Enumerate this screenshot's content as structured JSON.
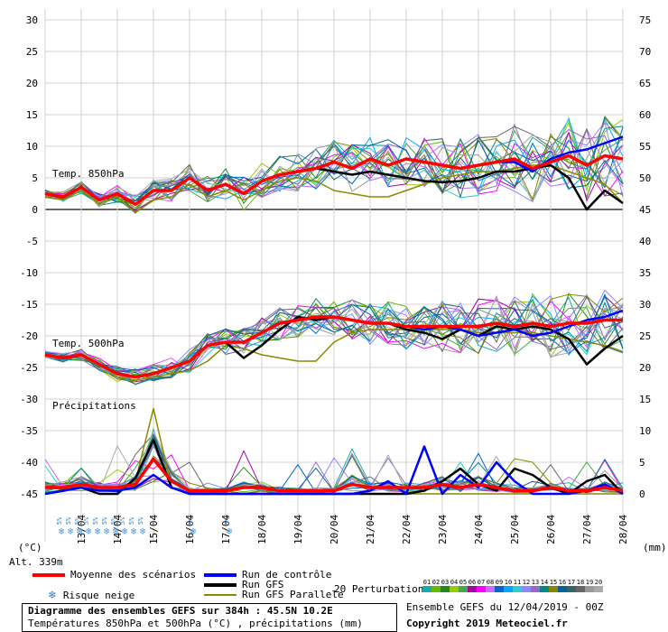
{
  "left_axis": {
    "unit": "(°C)",
    "ticks": [
      30,
      25,
      20,
      15,
      10,
      5,
      0,
      -5,
      -10,
      -15,
      -20,
      -25,
      -30,
      -35,
      -40,
      -45
    ]
  },
  "right_axis": {
    "unit": "(mm)",
    "ticks": [
      75,
      70,
      65,
      60,
      55,
      50,
      45,
      40,
      35,
      30,
      25,
      20,
      15,
      10,
      5,
      0
    ]
  },
  "dates": [
    "13/04",
    "14/04",
    "15/04",
    "16/04",
    "17/04",
    "18/04",
    "19/04",
    "20/04",
    "21/04",
    "22/04",
    "23/04",
    "24/04",
    "25/04",
    "26/04",
    "27/04",
    "28/04"
  ],
  "first_date": "12/04",
  "labels": {
    "t850": "Temp. 850hPa",
    "t500": "Temp. 500hPa",
    "precip": "Précipitations",
    "alt": "Alt. 339m"
  },
  "snow_risk": {
    "value_label": "5%",
    "days": [
      "13/04",
      "13/04",
      "13/04",
      "13/04",
      "14/04",
      "14/04",
      "14/04",
      "14/04",
      "15/04",
      "15/04",
      "16/04",
      "17/04"
    ]
  },
  "legend": {
    "mean": "Moyenne des scénarios",
    "snow": "Risque neige",
    "control": "Run de contrôle",
    "gfs": "Run GFS",
    "gfs_parallel": "Run GFS Parallele",
    "perturbations": "20 Perturbations",
    "colors": {
      "mean": "#ff0000",
      "control": "#0000ff",
      "gfs": "#000000",
      "gfs_parallel": "#8a8a00"
    }
  },
  "perturbation_ids": [
    "01",
    "02",
    "03",
    "04",
    "05",
    "06",
    "07",
    "08",
    "09",
    "10",
    "11",
    "12",
    "13",
    "14",
    "15",
    "16",
    "17",
    "18",
    "19",
    "20"
  ],
  "perturbation_colors": [
    "#1aaaaa",
    "#66bb00",
    "#228822",
    "#99cc00",
    "#44aa44",
    "#aa00aa",
    "#ff00ff",
    "#cc66ff",
    "#0066cc",
    "#00aaff",
    "#33cccc",
    "#8888ff",
    "#9966cc",
    "#008888",
    "#888800",
    "#006699",
    "#336666",
    "#666666",
    "#999999",
    "#aaaaaa"
  ],
  "footer": {
    "title": "Diagramme des ensembles GEFS sur 384h : 45.5N 10.2E",
    "subtitle": "Températures 850hPa et 500hPa (°C) , précipitations (mm)",
    "run": "Ensemble GEFS du 12/04/2019 - 00Z",
    "copyright": "Copyright 2019 Meteociel.fr"
  },
  "chart_data": {
    "type": "line",
    "x_unit": "days since 12/04 00Z",
    "x_range": [
      0,
      16
    ],
    "ylim": [
      -45,
      30
    ],
    "y2lim": [
      0,
      75
    ],
    "series": [
      {
        "name": "Moyenne des scénarios 850hPa",
        "axis": "left",
        "x": [
          0,
          0.5,
          1,
          1.5,
          2,
          2.5,
          3,
          3.5,
          4,
          4.5,
          5,
          5.5,
          6,
          6.5,
          7,
          7.5,
          8,
          8.5,
          9,
          9.5,
          10,
          10.5,
          11,
          11.5,
          12,
          12.5,
          13,
          13.5,
          14,
          14.5,
          15,
          15.5,
          16
        ],
        "values": [
          2.5,
          2,
          3.5,
          1.5,
          2.5,
          0.8,
          3,
          3,
          5,
          3,
          4,
          2.5,
          4.5,
          5.5,
          6,
          6.5,
          7.5,
          6.5,
          8,
          7,
          8,
          7.5,
          7,
          6.5,
          7,
          7.5,
          8,
          6.5,
          7.5,
          8.5,
          7,
          8.5,
          8
        ]
      },
      {
        "name": "Run de contrôle 850hPa",
        "axis": "left",
        "x": [
          0,
          0.5,
          1,
          1.5,
          2,
          2.5,
          3,
          3.5,
          4,
          4.5,
          5,
          5.5,
          6,
          6.5,
          7,
          7.5,
          8,
          8.5,
          9,
          9.5,
          10,
          10.5,
          11,
          11.5,
          12,
          12.5,
          13,
          13.5,
          14,
          14.5,
          15,
          15.5,
          16
        ],
        "values": [
          2.5,
          2,
          3.5,
          1.5,
          2.5,
          0.8,
          3,
          3,
          5,
          3,
          4,
          2.5,
          4.5,
          5.5,
          6,
          6.5,
          7.5,
          6.5,
          8,
          7,
          8,
          7.5,
          7,
          6.5,
          7,
          7.5,
          7.5,
          6,
          8,
          9,
          9.5,
          10.5,
          11.5
        ]
      },
      {
        "name": "Run GFS 850hPa",
        "axis": "left",
        "x": [
          0,
          0.5,
          1,
          1.5,
          2,
          2.5,
          3,
          3.5,
          4,
          4.5,
          5,
          5.5,
          6,
          6.5,
          7,
          7.5,
          8,
          8.5,
          9,
          9.5,
          10,
          10.5,
          11,
          11.5,
          12,
          12.5,
          13,
          13.5,
          14,
          14.5,
          15,
          15.5,
          16
        ],
        "values": [
          2.5,
          2,
          3.5,
          1.5,
          2.5,
          0.8,
          3,
          3,
          5,
          3,
          4,
          2.5,
          4.5,
          5.5,
          6,
          6.5,
          6,
          5.5,
          6,
          5.5,
          5,
          4.5,
          4.3,
          4.5,
          5,
          6,
          6,
          6.5,
          7,
          5,
          0,
          3,
          1
        ]
      },
      {
        "name": "Run GFS Parallele 850hPa",
        "axis": "left",
        "x": [
          0,
          0.5,
          1,
          1.5,
          2,
          2.5,
          3,
          3.5,
          4,
          4.5,
          5,
          5.5,
          6,
          6.5,
          7,
          7.5,
          8,
          8.5,
          9,
          9.5,
          10,
          10.5,
          11,
          11.5,
          12,
          12.5,
          13,
          13.5,
          14,
          14.5,
          15,
          15.5,
          16
        ],
        "values": [
          2,
          1.5,
          3,
          1,
          2,
          -0.5,
          1.5,
          2,
          4,
          2,
          3,
          1.5,
          3,
          4.5,
          5,
          4.5,
          3,
          2.5,
          2,
          2,
          3,
          4,
          5,
          5.5,
          6,
          6,
          6.5,
          7,
          7,
          6,
          5,
          4,
          1
        ]
      },
      {
        "name": "Moyenne des scénarios 500hPa",
        "axis": "left",
        "x": [
          0,
          0.5,
          1,
          1.5,
          2,
          2.5,
          3,
          3.5,
          4,
          4.5,
          5,
          5.5,
          6,
          6.5,
          7,
          7.5,
          8,
          8.5,
          9,
          9.5,
          10,
          10.5,
          11,
          11.5,
          12,
          12.5,
          13,
          13.5,
          14,
          14.5,
          15,
          15.5,
          16
        ],
        "values": [
          -23,
          -23.5,
          -23,
          -24.5,
          -26,
          -26.5,
          -26,
          -25,
          -24,
          -21.5,
          -21,
          -21,
          -19.5,
          -18,
          -17.5,
          -17,
          -17,
          -17.5,
          -18,
          -18,
          -18.5,
          -18.5,
          -18.5,
          -18.5,
          -18.5,
          -18,
          -18.5,
          -18,
          -18.5,
          -18,
          -18,
          -17.5,
          -17.5
        ]
      },
      {
        "name": "Run de contrôle 500hPa",
        "axis": "left",
        "x": [
          0,
          0.5,
          1,
          1.5,
          2,
          2.5,
          3,
          3.5,
          4,
          4.5,
          5,
          5.5,
          6,
          6.5,
          7,
          7.5,
          8,
          8.5,
          9,
          9.5,
          10,
          10.5,
          11,
          11.5,
          12,
          12.5,
          13,
          13.5,
          14,
          14.5,
          15,
          15.5,
          16
        ],
        "values": [
          -23,
          -23.5,
          -23,
          -24.5,
          -26,
          -26.5,
          -26,
          -25,
          -24,
          -21.5,
          -21,
          -21,
          -19.5,
          -18,
          -17.5,
          -17,
          -17,
          -17.5,
          -18,
          -18,
          -18.5,
          -19,
          -18.5,
          -19,
          -20,
          -19.5,
          -19,
          -20,
          -19.5,
          -18.5,
          -17.5,
          -17,
          -16
        ]
      },
      {
        "name": "Run GFS 500hPa",
        "axis": "left",
        "x": [
          0,
          0.5,
          1,
          1.5,
          2,
          2.5,
          3,
          3.5,
          4,
          4.5,
          5,
          5.5,
          6,
          6.5,
          7,
          7.5,
          8,
          8.5,
          9,
          9.5,
          10,
          10.5,
          11,
          11.5,
          12,
          12.5,
          13,
          13.5,
          14,
          14.5,
          15,
          15.5,
          16
        ],
        "values": [
          -23,
          -23.5,
          -23,
          -24.5,
          -26,
          -26.5,
          -26,
          -25,
          -24,
          -21.5,
          -21,
          -23.5,
          -21.5,
          -19,
          -17,
          -17.5,
          -17,
          -17.5,
          -18,
          -18,
          -19,
          -19.5,
          -20.5,
          -19,
          -20,
          -18.5,
          -19,
          -18.5,
          -19,
          -20.5,
          -24.5,
          -22,
          -20
        ]
      },
      {
        "name": "Run GFS Parallele 500hPa",
        "axis": "left",
        "x": [
          0,
          0.5,
          1,
          1.5,
          2,
          2.5,
          3,
          3.5,
          4,
          4.5,
          5,
          5.5,
          6,
          6.5,
          7,
          7.5,
          8,
          8.5,
          9,
          9.5,
          10,
          10.5,
          11,
          11.5,
          12,
          12.5,
          13,
          13.5,
          14,
          14.5,
          15,
          15.5,
          16
        ],
        "values": [
          -23,
          -23.5,
          -23,
          -24.5,
          -26.5,
          -27,
          -26.5,
          -26,
          -25.5,
          -24,
          -21.5,
          -22,
          -23,
          -23.5,
          -24,
          -24,
          -21,
          -19.5,
          -19,
          -19,
          -19,
          -19,
          -19,
          -19,
          -19.5,
          -19.5,
          -19.5,
          -19.5,
          -20,
          -20.5,
          -21,
          -21.5,
          -22.5
        ]
      },
      {
        "name": "Moyenne des scénarios précipitations",
        "axis": "right",
        "x": [
          0,
          0.5,
          1,
          1.5,
          2,
          2.5,
          3,
          3.5,
          4,
          4.5,
          5,
          5.5,
          6,
          6.5,
          7,
          7.5,
          8,
          8.5,
          9,
          9.5,
          10,
          10.5,
          11,
          11.5,
          12,
          12.5,
          13,
          13.5,
          14,
          14.5,
          15,
          15.5,
          16
        ],
        "values": [
          1,
          1,
          1.5,
          1,
          1,
          1.5,
          5.5,
          2,
          0.5,
          0.5,
          0.5,
          1,
          1,
          0.5,
          0.5,
          0.5,
          0.5,
          1.5,
          1,
          1,
          1,
          1,
          1.5,
          1,
          1.5,
          1,
          0.5,
          0.5,
          1,
          0.5,
          0.5,
          1,
          0.5
        ]
      },
      {
        "name": "Run de contrôle précipitations",
        "axis": "right",
        "x": [
          0,
          0.5,
          1,
          1.5,
          2,
          2.5,
          3,
          3.5,
          4,
          4.5,
          5,
          5.5,
          6,
          6.5,
          7,
          7.5,
          8,
          8.5,
          9,
          9.5,
          10,
          10.5,
          11,
          11.5,
          12,
          12.5,
          13,
          13.5,
          14,
          14.5,
          15,
          15.5,
          16
        ],
        "values": [
          0,
          0.5,
          1,
          0.5,
          0.5,
          1,
          3,
          1,
          0,
          0,
          0,
          0,
          0,
          0,
          0,
          0,
          0,
          0,
          0.5,
          2,
          0,
          7.5,
          0,
          3,
          1,
          5,
          2,
          0,
          0,
          0,
          0.5,
          1.5,
          0
        ]
      },
      {
        "name": "Run GFS précipitations",
        "axis": "right",
        "x": [
          0,
          0.5,
          1,
          1.5,
          2,
          2.5,
          3,
          3.5,
          4,
          4.5,
          5,
          5.5,
          6,
          6.5,
          7,
          7.5,
          8,
          8.5,
          9,
          9.5,
          10,
          10.5,
          11,
          11.5,
          12,
          12.5,
          13,
          13.5,
          14,
          14.5,
          15,
          15.5,
          16
        ],
        "values": [
          0,
          0.5,
          1,
          0,
          0,
          2.5,
          8.5,
          1,
          0,
          0,
          0,
          0,
          0,
          0,
          0,
          0,
          0,
          0,
          0,
          0,
          0,
          0.5,
          2,
          4,
          1.5,
          0.5,
          4,
          3,
          1,
          0,
          2,
          3,
          0
        ]
      },
      {
        "name": "Run GFS Parallele précipitations",
        "axis": "right",
        "x": [
          0,
          0.5,
          1,
          1.5,
          2,
          2.5,
          3,
          3.5,
          4,
          4.5,
          5,
          5.5,
          6,
          6.5,
          7,
          7.5,
          8,
          8.5,
          9,
          9.5,
          10,
          10.5,
          11,
          11.5,
          12,
          12.5,
          13,
          13.5,
          14,
          14.5,
          15,
          15.5,
          16
        ],
        "values": [
          1.5,
          0.5,
          1.5,
          0.5,
          1,
          2,
          13.5,
          1,
          0,
          0,
          0.5,
          0,
          0.5,
          0,
          0,
          0,
          0,
          0,
          0,
          0,
          0,
          0,
          0,
          0,
          0,
          0,
          0,
          0,
          0,
          0,
          0,
          0,
          0
        ]
      }
    ]
  }
}
